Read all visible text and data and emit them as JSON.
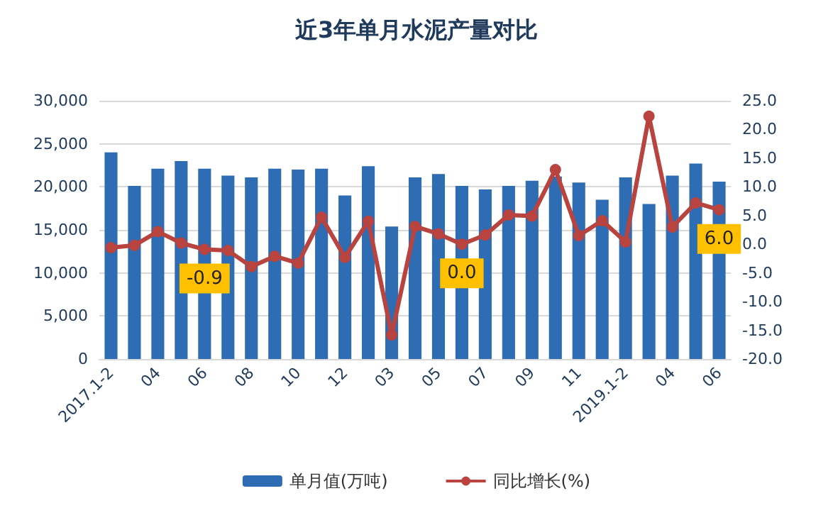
{
  "chart_data": {
    "type": "bar",
    "title": "近3年单月水泥产量对比",
    "categories": [
      "2017.1-2",
      null,
      "04",
      null,
      "06",
      null,
      "08",
      null,
      "10",
      null,
      "12",
      null,
      "03",
      null,
      "05",
      null,
      "07",
      null,
      "09",
      null,
      "11",
      null,
      "2019.1-2",
      null,
      "04",
      null,
      "06"
    ],
    "series": [
      {
        "name": "单月值(万吨)",
        "color": "#2e6db4",
        "values": [
          24000,
          20100,
          22100,
          23000,
          22100,
          21300,
          21100,
          22100,
          22000,
          22100,
          19000,
          22400,
          15400,
          21100,
          21500,
          20100,
          19700,
          20100,
          20700,
          21200,
          20500,
          18500,
          21100,
          18000,
          21300,
          22700,
          20600
        ]
      },
      {
        "name": "同比增长(%)",
        "type": "line",
        "axis": "y2",
        "color": "#b9433f",
        "marker": "circle",
        "values": [
          -0.6,
          -0.2,
          2.2,
          0.2,
          -0.9,
          -1.1,
          -3.9,
          -2.1,
          -3.3,
          4.7,
          -2.3,
          4.0,
          -15.8,
          3.1,
          1.8,
          0.0,
          1.6,
          5.1,
          4.9,
          13.0,
          1.5,
          4.1,
          0.4,
          22.3,
          3.0,
          7.2,
          6.0
        ],
        "value_labels": [
          null,
          null,
          null,
          null,
          "-0.9",
          null,
          null,
          null,
          null,
          null,
          null,
          null,
          null,
          null,
          null,
          "0.0",
          null,
          null,
          null,
          null,
          null,
          null,
          null,
          null,
          null,
          null,
          "6.0"
        ]
      }
    ],
    "ylim": [
      0,
      30000
    ],
    "yticks": [
      {
        "value": 0,
        "label": "0"
      },
      {
        "value": 5000,
        "label": "5,000"
      },
      {
        "value": 10000,
        "label": "10,000"
      },
      {
        "value": 15000,
        "label": "15,000"
      },
      {
        "value": 20000,
        "label": "20,000"
      },
      {
        "value": 25000,
        "label": "25,000"
      },
      {
        "value": 30000,
        "label": "30,000"
      }
    ],
    "y2lim": [
      -20,
      25
    ],
    "y2ticks": [
      {
        "value": -20,
        "label": "-20.0"
      },
      {
        "value": -15,
        "label": "-15.0"
      },
      {
        "value": -10,
        "label": "-10.0"
      },
      {
        "value": -5,
        "label": "-5.0"
      },
      {
        "value": 0,
        "label": "0.0"
      },
      {
        "value": 5,
        "label": "5.0"
      },
      {
        "value": 10,
        "label": "10.0"
      },
      {
        "value": 15,
        "label": "15.0"
      },
      {
        "value": 20,
        "label": "20.0"
      },
      {
        "value": 25,
        "label": "25.0"
      }
    ],
    "grid": "y",
    "legend": "bottom"
  }
}
